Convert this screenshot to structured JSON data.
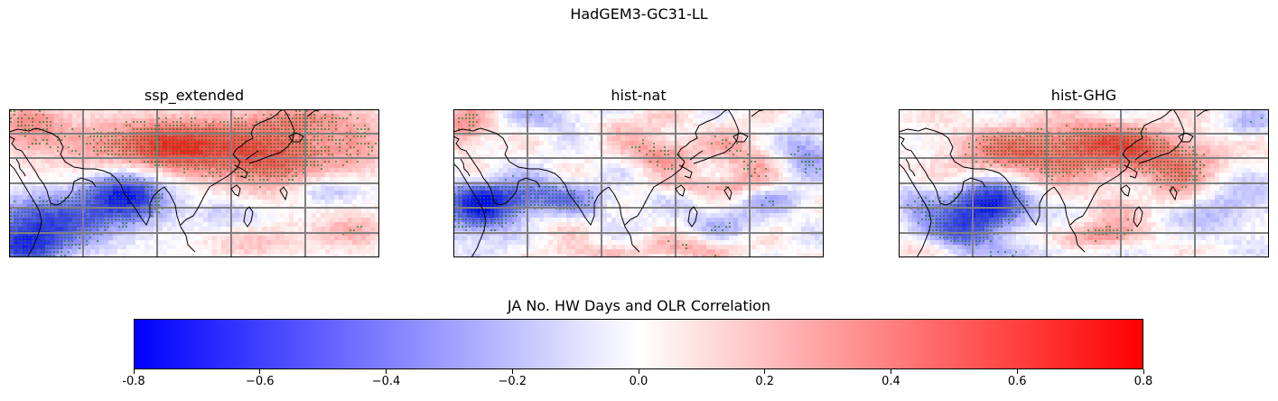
{
  "figure": {
    "title": "HadGEM3-GC31-LL"
  },
  "panels": [
    {
      "title": "ssp_extended",
      "pattern": "ssp"
    },
    {
      "title": "hist-nat",
      "pattern": "nat"
    },
    {
      "title": "hist-GHG",
      "pattern": "ghg"
    }
  ],
  "colorbar": {
    "label": "JA No. HW Days and OLR Correlation",
    "min": -0.8,
    "max": 0.8,
    "ticks": [
      "-0.8",
      "−0.6",
      "−0.4",
      "−0.2",
      "0.0",
      "0.2",
      "0.4",
      "0.6",
      "0.8"
    ],
    "colors": {
      "low": "#0000ff",
      "mid": "#ffffff",
      "high": "#ff0000"
    }
  },
  "styles": {
    "gridline_color": "#808080",
    "coastline_color": "#000000",
    "stipple_color": "#1a7a1a"
  }
}
